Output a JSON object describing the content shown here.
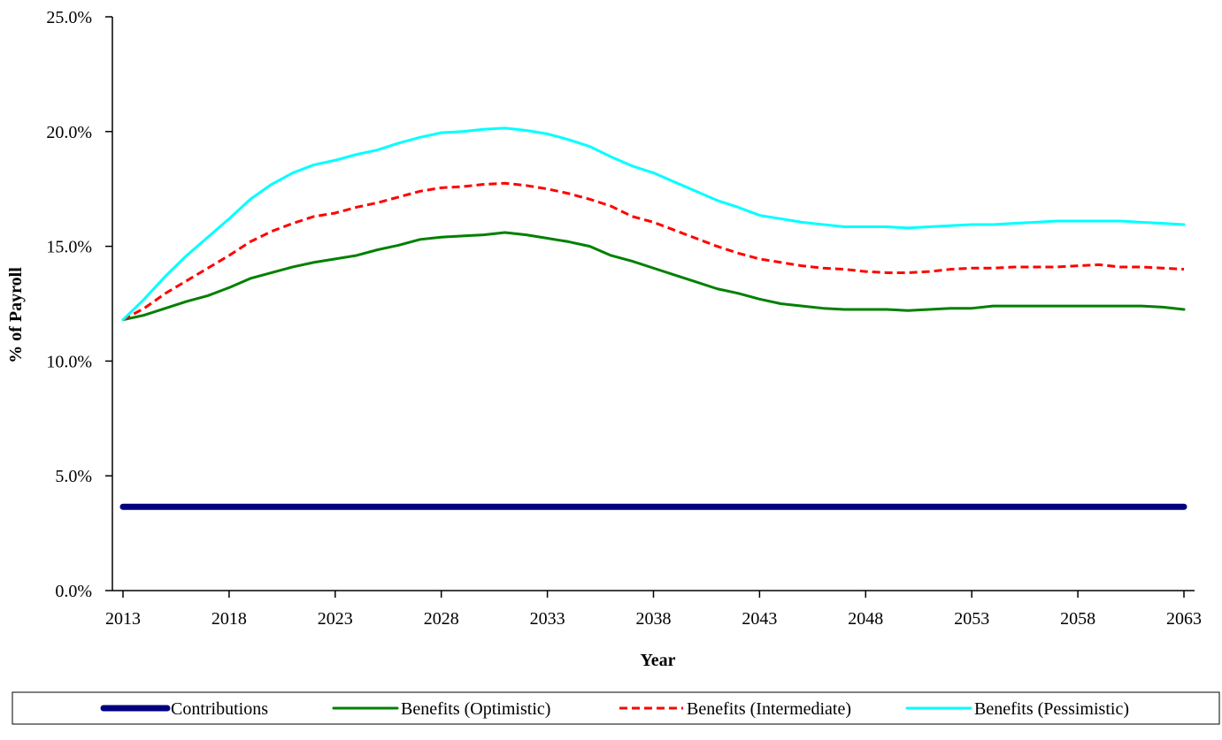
{
  "chart_data": {
    "type": "line",
    "title": "",
    "xlabel": "Year",
    "ylabel": "% of Payroll",
    "xlim": [
      2013,
      2063
    ],
    "ylim": [
      0,
      25
    ],
    "x_ticks": [
      "2013",
      "2018",
      "2023",
      "2028",
      "2033",
      "2038",
      "2043",
      "2048",
      "2053",
      "2058",
      "2063"
    ],
    "y_ticks": [
      "0.0%",
      "5.0%",
      "10.0%",
      "15.0%",
      "20.0%",
      "25.0%"
    ],
    "grid": false,
    "legend_position": "bottom",
    "x": [
      2013,
      2014,
      2015,
      2016,
      2017,
      2018,
      2019,
      2020,
      2021,
      2022,
      2023,
      2024,
      2025,
      2026,
      2027,
      2028,
      2029,
      2030,
      2031,
      2032,
      2033,
      2034,
      2035,
      2036,
      2037,
      2038,
      2039,
      2040,
      2041,
      2042,
      2043,
      2044,
      2045,
      2046,
      2047,
      2048,
      2049,
      2050,
      2051,
      2052,
      2053,
      2054,
      2055,
      2056,
      2057,
      2058,
      2059,
      2060,
      2061,
      2062,
      2063
    ],
    "series": [
      {
        "name": "Contributions",
        "color": "#000080",
        "style": "solid-thick",
        "values": [
          3.65,
          3.65,
          3.65,
          3.65,
          3.65,
          3.65,
          3.65,
          3.65,
          3.65,
          3.65,
          3.65,
          3.65,
          3.65,
          3.65,
          3.65,
          3.65,
          3.65,
          3.65,
          3.65,
          3.65,
          3.65,
          3.65,
          3.65,
          3.65,
          3.65,
          3.65,
          3.65,
          3.65,
          3.65,
          3.65,
          3.65,
          3.65,
          3.65,
          3.65,
          3.65,
          3.65,
          3.65,
          3.65,
          3.65,
          3.65,
          3.65,
          3.65,
          3.65,
          3.65,
          3.65,
          3.65,
          3.65,
          3.65,
          3.65,
          3.65,
          3.65
        ]
      },
      {
        "name": "Benefits (Optimistic)",
        "color": "#008000",
        "style": "solid",
        "values": [
          11.8,
          12.0,
          12.3,
          12.6,
          12.85,
          13.2,
          13.6,
          13.85,
          14.1,
          14.3,
          14.45,
          14.6,
          14.85,
          15.05,
          15.3,
          15.4,
          15.45,
          15.5,
          15.6,
          15.5,
          15.35,
          15.2,
          15.0,
          14.6,
          14.35,
          14.05,
          13.75,
          13.45,
          13.15,
          12.95,
          12.7,
          12.5,
          12.4,
          12.3,
          12.25,
          12.25,
          12.25,
          12.2,
          12.25,
          12.3,
          12.3,
          12.4,
          12.4,
          12.4,
          12.4,
          12.4,
          12.4,
          12.4,
          12.4,
          12.35,
          12.25
        ]
      },
      {
        "name": "Benefits (Intermediate)",
        "color": "#ff0000",
        "style": "dashed",
        "values": [
          11.8,
          12.3,
          12.95,
          13.5,
          14.05,
          14.6,
          15.2,
          15.65,
          16.0,
          16.3,
          16.45,
          16.7,
          16.9,
          17.15,
          17.4,
          17.55,
          17.6,
          17.7,
          17.75,
          17.65,
          17.5,
          17.3,
          17.05,
          16.75,
          16.3,
          16.05,
          15.7,
          15.35,
          15.0,
          14.7,
          14.45,
          14.3,
          14.15,
          14.05,
          14.0,
          13.9,
          13.85,
          13.85,
          13.9,
          14.0,
          14.05,
          14.05,
          14.1,
          14.1,
          14.1,
          14.15,
          14.2,
          14.1,
          14.1,
          14.05,
          14.0
        ]
      },
      {
        "name": "Benefits (Pessimistic)",
        "color": "#00ffff",
        "style": "solid",
        "values": [
          11.8,
          12.7,
          13.7,
          14.6,
          15.4,
          16.2,
          17.05,
          17.7,
          18.2,
          18.55,
          18.75,
          19.0,
          19.2,
          19.5,
          19.75,
          19.95,
          20.0,
          20.1,
          20.15,
          20.05,
          19.9,
          19.65,
          19.35,
          18.9,
          18.5,
          18.2,
          17.8,
          17.4,
          17.0,
          16.7,
          16.35,
          16.2,
          16.05,
          15.95,
          15.85,
          15.85,
          15.85,
          15.8,
          15.85,
          15.9,
          15.95,
          15.95,
          16.0,
          16.05,
          16.1,
          16.1,
          16.1,
          16.1,
          16.05,
          16.0,
          15.95
        ]
      }
    ]
  }
}
